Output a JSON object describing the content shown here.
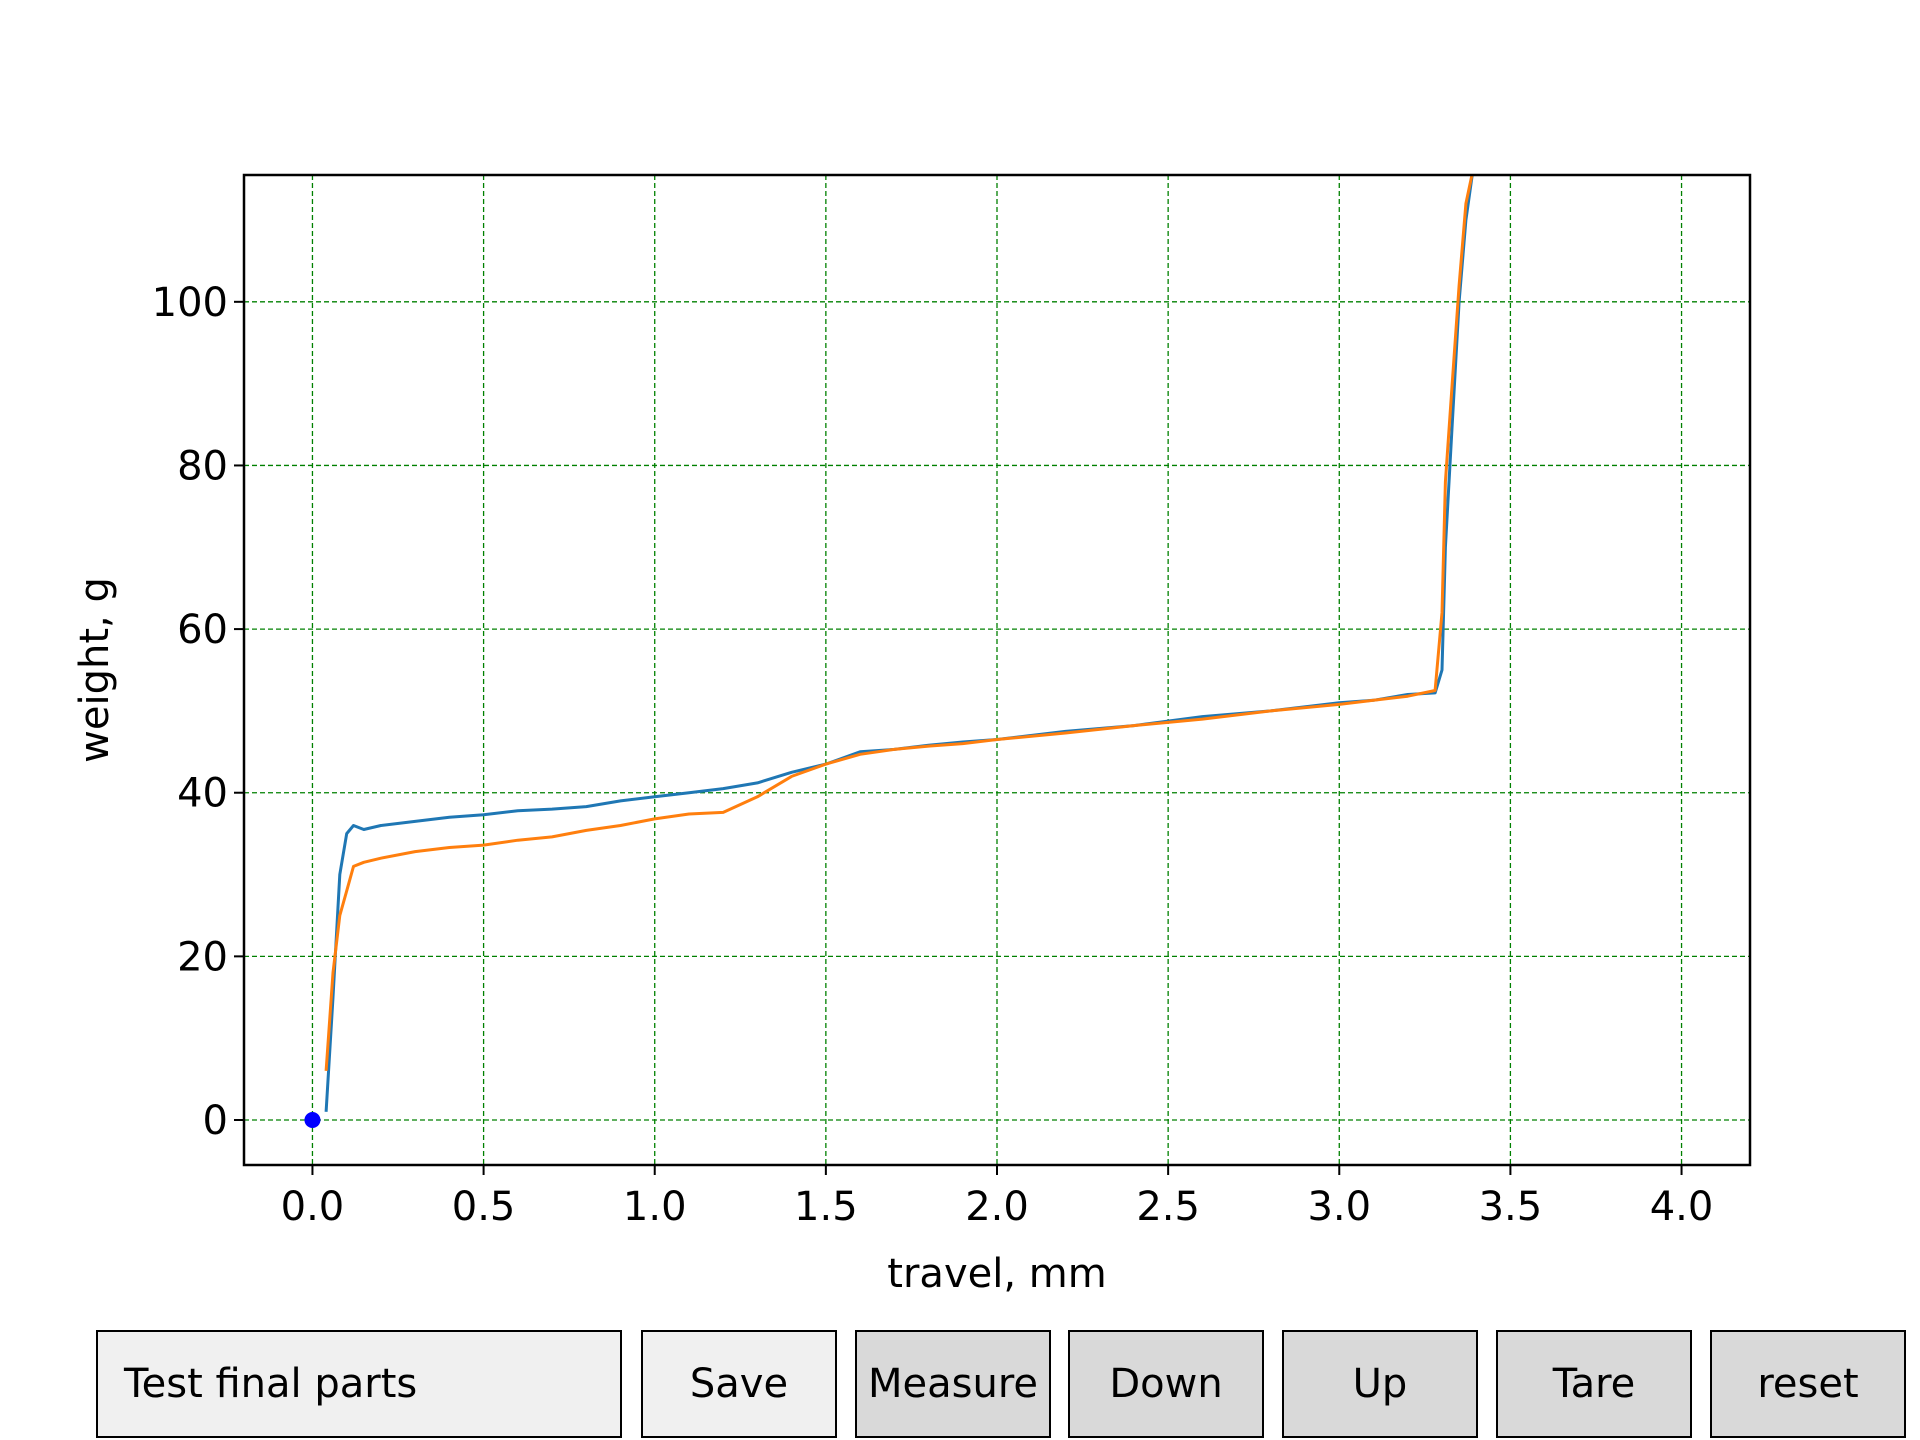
{
  "chart_data": {
    "type": "line",
    "xlabel": "travel, mm",
    "ylabel": "weight, g",
    "xlim": [
      -0.2,
      4.2
    ],
    "ylim": [
      -5.5,
      115.5
    ],
    "xticks": [
      "0.0",
      "0.5",
      "1.0",
      "1.5",
      "2.0",
      "2.5",
      "3.0",
      "3.5",
      "4.0"
    ],
    "yticks": [
      "0",
      "20",
      "40",
      "60",
      "80",
      "100"
    ],
    "grid": true,
    "grid_color": "#008000",
    "legend": "none",
    "marker_point": {
      "x": 0.0,
      "y": 0.0,
      "color": "#0000ff"
    },
    "series": [
      {
        "color": "#1f77b4",
        "x": [
          0.04,
          0.06,
          0.08,
          0.1,
          0.12,
          0.15,
          0.2,
          0.3,
          0.4,
          0.5,
          0.6,
          0.7,
          0.8,
          0.9,
          1.0,
          1.1,
          1.2,
          1.3,
          1.4,
          1.5,
          1.6,
          1.7,
          1.8,
          1.9,
          2.0,
          2.2,
          2.4,
          2.6,
          2.8,
          3.0,
          3.1,
          3.2,
          3.28,
          3.3,
          3.31,
          3.33,
          3.35,
          3.37,
          3.39,
          3.41
        ],
        "y": [
          1,
          15,
          30,
          35,
          36,
          35.5,
          36,
          36.5,
          37,
          37.3,
          37.8,
          38,
          38.3,
          39,
          39.5,
          40,
          40.5,
          41.2,
          42.5,
          43.5,
          45,
          45.3,
          45.8,
          46.2,
          46.5,
          47.5,
          48.2,
          49.3,
          50,
          51,
          51.3,
          52,
          52.2,
          55,
          70,
          85,
          100,
          110,
          116,
          118
        ]
      },
      {
        "color": "#ff7f0e",
        "x": [
          0.04,
          0.06,
          0.08,
          0.1,
          0.12,
          0.15,
          0.2,
          0.3,
          0.4,
          0.5,
          0.6,
          0.7,
          0.8,
          0.9,
          1.0,
          1.1,
          1.2,
          1.3,
          1.4,
          1.5,
          1.6,
          1.7,
          1.8,
          1.9,
          2.0,
          2.2,
          2.4,
          2.6,
          2.8,
          3.0,
          3.1,
          3.2,
          3.28,
          3.3,
          3.31,
          3.33,
          3.35,
          3.37,
          3.39,
          3.41
        ],
        "y": [
          6,
          18,
          25,
          28,
          31,
          31.5,
          32,
          32.8,
          33.3,
          33.6,
          34.2,
          34.6,
          35.4,
          36,
          36.8,
          37.4,
          37.6,
          39.5,
          42,
          43.5,
          44.7,
          45.3,
          45.7,
          46,
          46.5,
          47.3,
          48.2,
          49,
          50,
          50.8,
          51.3,
          51.8,
          52.5,
          62,
          78,
          90,
          102,
          112,
          116,
          118
        ]
      }
    ]
  },
  "controls": {
    "name_value": "Test final parts",
    "save_label": "Save",
    "measure_label": "Measure",
    "down_label": "Down",
    "up_label": "Up",
    "tare_label": "Tare",
    "reset_label": "reset"
  }
}
